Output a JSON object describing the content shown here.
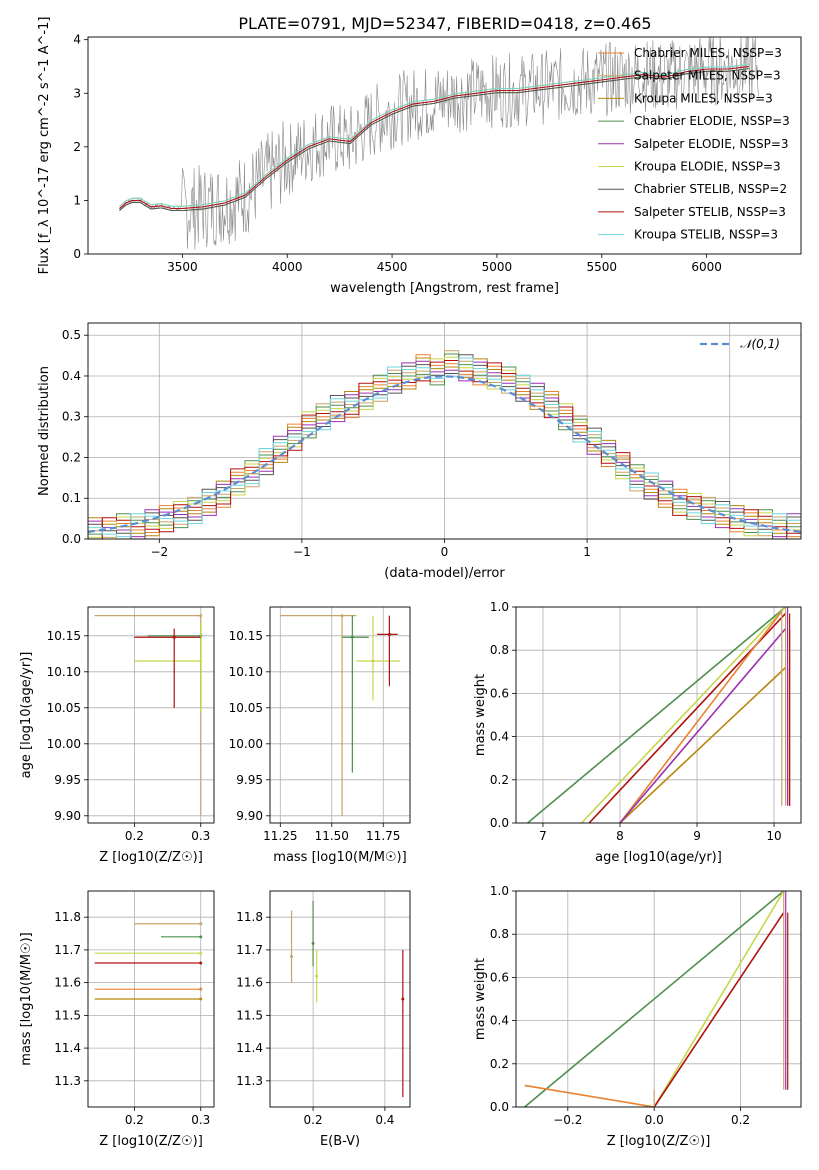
{
  "title": "PLATE=0791, MJD=52347, FIBERID=0418, z=0.465",
  "series_colors": [
    "#e8822f",
    "#c7a46a",
    "#b8860b",
    "#4e8f4e",
    "#9b30b0",
    "#c8d64a",
    "#555555",
    "#b01010",
    "#6fd6dc"
  ],
  "chart_data": [
    {
      "panel": "spectrum",
      "type": "line",
      "xlabel": "wavelength [Angstrom, rest frame]",
      "ylabel": "Flux [f_λ 10^-17 erg cm^-2 s^-1 A^-1]",
      "xlim": [
        3050,
        6450
      ],
      "ylim": [
        0,
        4.05
      ],
      "xticks": [
        "3500",
        "4000",
        "4500",
        "5000",
        "5500",
        "6000"
      ],
      "yticks": [
        "0",
        "1",
        "2",
        "3",
        "4"
      ],
      "legend": [
        "Chabrier MILES, N_SSP=3",
        "Salpeter MILES, N_SSP=3",
        "Kroupa MILES, N_SSP=3",
        "Chabrier ELODIE, N_SSP=3",
        "Salpeter ELODIE, N_SSP=3",
        "Kroupa ELODIE, N_SSP=3",
        "Chabrier STELIB, N_SSP=2",
        "Salpeter STELIB, N_SSP=3",
        "Kroupa STELIB, N_SSP=3"
      ],
      "model_curve": {
        "x": [
          3200,
          3230,
          3260,
          3300,
          3350,
          3400,
          3450,
          3500,
          3600,
          3700,
          3800,
          3900,
          4000,
          4100,
          4200,
          4300,
          4400,
          4500,
          4600,
          4700,
          4800,
          4900,
          5000,
          5100,
          5200,
          5300,
          5400,
          5500,
          5600,
          5700,
          5800,
          5900,
          6000,
          6100,
          6200
        ],
        "y": [
          0.85,
          0.95,
          1.0,
          1.0,
          0.88,
          0.9,
          0.85,
          0.85,
          0.88,
          0.95,
          1.1,
          1.45,
          1.75,
          2.0,
          2.15,
          2.1,
          2.45,
          2.65,
          2.8,
          2.85,
          2.95,
          3.0,
          3.05,
          3.05,
          3.1,
          3.15,
          3.2,
          3.25,
          3.3,
          3.35,
          3.3,
          3.4,
          3.45,
          3.45,
          3.5
        ]
      },
      "data_curve_note": "noisy observed spectrum (grey) around model"
    },
    {
      "panel": "residuals",
      "type": "line",
      "xlabel": "(data-model)/error",
      "ylabel": "Normed distribution",
      "xlim": [
        -2.5,
        2.5
      ],
      "ylim": [
        0,
        0.53
      ],
      "xticks": [
        "−2",
        "−1",
        "0",
        "1",
        "2"
      ],
      "yticks": [
        "0.0",
        "0.1",
        "0.2",
        "0.3",
        "0.4",
        "0.5"
      ],
      "legend": [
        "𝒩(0,1)"
      ],
      "histogram_bin_width": 0.1,
      "histogram_values": [
        0.02,
        0.02,
        0.03,
        0.03,
        0.04,
        0.05,
        0.06,
        0.07,
        0.09,
        0.11,
        0.14,
        0.16,
        0.19,
        0.22,
        0.25,
        0.28,
        0.3,
        0.32,
        0.33,
        0.35,
        0.37,
        0.39,
        0.4,
        0.42,
        0.41,
        0.43,
        0.42,
        0.41,
        0.4,
        0.39,
        0.37,
        0.35,
        0.33,
        0.3,
        0.27,
        0.24,
        0.21,
        0.18,
        0.15,
        0.13,
        0.11,
        0.09,
        0.08,
        0.07,
        0.06,
        0.05,
        0.04,
        0.04,
        0.03,
        0.03
      ]
    },
    {
      "panel": "age_vs_Z",
      "type": "scatter",
      "xlabel": "Z [log10(Z/Z☉)]",
      "ylabel": "age [log10(age/yr)]",
      "xlim": [
        0.13,
        0.32
      ],
      "ylim": [
        9.89,
        10.19
      ],
      "xticks": [
        "0.2",
        "0.3"
      ],
      "yticks": [
        "9.90",
        "9.95",
        "10.00",
        "10.05",
        "10.10",
        "10.15"
      ],
      "points": [
        {
          "x": 0.3,
          "y": 10.178,
          "xlo": 0.14,
          "xhi": 0.3,
          "ylo": 9.9,
          "yhi": 10.178
        },
        {
          "x": 0.3,
          "y": 10.15,
          "xlo": 0.22,
          "xhi": 0.3,
          "ylo": 10.05,
          "yhi": 10.17
        },
        {
          "x": 0.3,
          "y": 10.115,
          "xlo": 0.2,
          "xhi": 0.3,
          "ylo": 10.045,
          "yhi": 10.17
        },
        {
          "x": 0.26,
          "y": 10.148,
          "xlo": 0.2,
          "xhi": 0.3,
          "ylo": 10.05,
          "yhi": 10.16
        }
      ]
    },
    {
      "panel": "age_vs_mass",
      "type": "scatter",
      "xlabel": "mass [log10(M/M☉)]",
      "ylabel": "",
      "xlim": [
        11.2,
        11.88
      ],
      "ylim": [
        9.89,
        10.19
      ],
      "xticks": [
        "11.25",
        "11.50",
        "11.75"
      ],
      "yticks": [
        "9.90",
        "9.95",
        "10.00",
        "10.05",
        "10.10",
        "10.15"
      ],
      "points": [
        {
          "x": 11.55,
          "y": 10.178,
          "xlo": 11.25,
          "xhi": 11.62,
          "ylo": 9.9,
          "yhi": 10.178
        },
        {
          "x": 11.6,
          "y": 10.148,
          "xlo": 11.55,
          "xhi": 11.68,
          "ylo": 9.96,
          "yhi": 10.178
        },
        {
          "x": 11.7,
          "y": 10.115,
          "xlo": 11.62,
          "xhi": 11.83,
          "ylo": 10.06,
          "yhi": 10.178
        },
        {
          "x": 11.78,
          "y": 10.152,
          "xlo": 11.72,
          "xhi": 11.82,
          "ylo": 10.08,
          "yhi": 10.178
        }
      ]
    },
    {
      "panel": "weight_vs_age",
      "type": "line",
      "xlabel": "age [log10(age/yr)]",
      "ylabel": "mass weight",
      "xlim": [
        6.65,
        10.35
      ],
      "ylim": [
        0,
        1.0
      ],
      "xticks": [
        "7",
        "8",
        "9",
        "10"
      ],
      "yticks": [
        "0.0",
        "0.2",
        "0.4",
        "0.6",
        "0.8",
        "1.0"
      ],
      "lines": [
        {
          "x": [
            6.8,
            10.15
          ],
          "y": [
            0,
            1.0
          ]
        },
        {
          "x": [
            7.5,
            10.15
          ],
          "y": [
            0,
            1.0
          ]
        },
        {
          "x": [
            7.6,
            10.15
          ],
          "y": [
            0,
            0.97
          ]
        },
        {
          "x": [
            8.0,
            10.1
          ],
          "y": [
            0,
            0.98
          ]
        },
        {
          "x": [
            8.0,
            10.15
          ],
          "y": [
            0,
            0.72
          ]
        },
        {
          "x": [
            8.0,
            10.15
          ],
          "y": [
            0,
            0.9
          ]
        }
      ]
    },
    {
      "panel": "mass_vs_Z",
      "type": "scatter",
      "xlabel": "Z [log10(Z/Z☉)]",
      "ylabel": "mass [log10(M/M☉)]",
      "xlim": [
        0.13,
        0.32
      ],
      "ylim": [
        11.22,
        11.88
      ],
      "xticks": [
        "0.2",
        "0.3"
      ],
      "yticks": [
        "11.3",
        "11.4",
        "11.5",
        "11.6",
        "11.7",
        "11.8"
      ],
      "points": [
        {
          "x": 0.3,
          "y": 11.78,
          "xlo": 0.2,
          "xhi": 0.3
        },
        {
          "x": 0.3,
          "y": 11.74,
          "xlo": 0.24,
          "xhi": 0.3
        },
        {
          "x": 0.3,
          "y": 11.69,
          "xlo": 0.14,
          "xhi": 0.3
        },
        {
          "x": 0.3,
          "y": 11.66,
          "xlo": 0.14,
          "xhi": 0.3
        },
        {
          "x": 0.3,
          "y": 11.58,
          "xlo": 0.14,
          "xhi": 0.3
        },
        {
          "x": 0.3,
          "y": 11.55,
          "xlo": 0.14,
          "xhi": 0.3
        }
      ]
    },
    {
      "panel": "mass_vs_EBV",
      "type": "scatter",
      "xlabel": "E(B-V)",
      "ylabel": "",
      "xlim": [
        0.08,
        0.47
      ],
      "ylim": [
        11.22,
        11.88
      ],
      "xticks": [
        "0.2",
        "0.4"
      ],
      "yticks": [
        "11.3",
        "11.4",
        "11.5",
        "11.6",
        "11.7",
        "11.8"
      ],
      "points": [
        {
          "x": 0.14,
          "y": 11.68,
          "ylo": 11.6,
          "yhi": 11.82
        },
        {
          "x": 0.2,
          "y": 11.72,
          "ylo": 11.65,
          "yhi": 11.85
        },
        {
          "x": 0.21,
          "y": 11.62,
          "ylo": 11.54,
          "yhi": 11.7
        },
        {
          "x": 0.45,
          "y": 11.55,
          "ylo": 11.25,
          "yhi": 11.7
        }
      ]
    },
    {
      "panel": "weight_vs_Z",
      "type": "line",
      "xlabel": "Z [log10(Z/Z☉)]",
      "ylabel": "mass weight",
      "xlim": [
        -0.32,
        0.34
      ],
      "ylim": [
        0,
        1.0
      ],
      "xticks": [
        "−0.2",
        "0.0",
        "0.2"
      ],
      "yticks": [
        "0.0",
        "0.2",
        "0.4",
        "0.6",
        "0.8",
        "1.0"
      ],
      "lines": [
        {
          "x": [
            -0.3,
            0.3
          ],
          "y": [
            0,
            1.0
          ]
        },
        {
          "x": [
            0.0,
            0.3
          ],
          "y": [
            0,
            1.0
          ]
        },
        {
          "x": [
            0.0,
            0.3
          ],
          "y": [
            0,
            0.9
          ]
        },
        {
          "x": [
            -0.3,
            0.0
          ],
          "y": [
            0.1,
            0.0
          ]
        }
      ]
    }
  ]
}
